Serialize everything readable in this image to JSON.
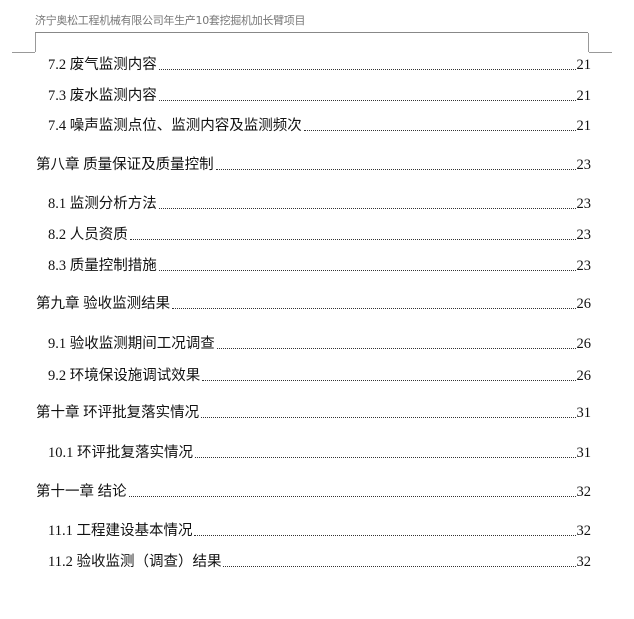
{
  "header": "济宁奥松工程机械有限公司年生产10套挖掘机加长臂项目",
  "toc": [
    {
      "level": 2,
      "title": "7.2  废气监测内容",
      "page": "21"
    },
    {
      "level": 2,
      "title": "7.3  废水监测内容",
      "page": "21"
    },
    {
      "level": 2,
      "title": "7.4  噪声监测点位、监测内容及监测频次",
      "page": "21"
    },
    {
      "level": 1,
      "title": "第八章  质量保证及质量控制",
      "page": "23"
    },
    {
      "level": 2,
      "title": "8.1  监测分析方法",
      "page": "23"
    },
    {
      "level": 2,
      "title": "8.2  人员资质",
      "page": "23"
    },
    {
      "level": 2,
      "title": "8.3  质量控制措施",
      "page": "23"
    },
    {
      "level": 1,
      "title": "第九章  验收监测结果",
      "page": "26"
    },
    {
      "level": 2,
      "title": "9.1 验收监测期间工况调查",
      "page": "26"
    },
    {
      "level": 2,
      "title": "9.2 环境保设施调试效果",
      "page": "26"
    },
    {
      "level": 1,
      "title": "第十章  环评批复落实情况",
      "page": "31"
    },
    {
      "level": 2,
      "title": "10.1 环评批复落实情况",
      "page": "31"
    },
    {
      "level": 1,
      "title": "第十一章  结论",
      "page": "32"
    },
    {
      "level": 2,
      "title": "11.1  工程建设基本情况",
      "page": "32"
    },
    {
      "level": 2,
      "title": "11.2  验收监测（调查）结果",
      "page": "32"
    }
  ]
}
